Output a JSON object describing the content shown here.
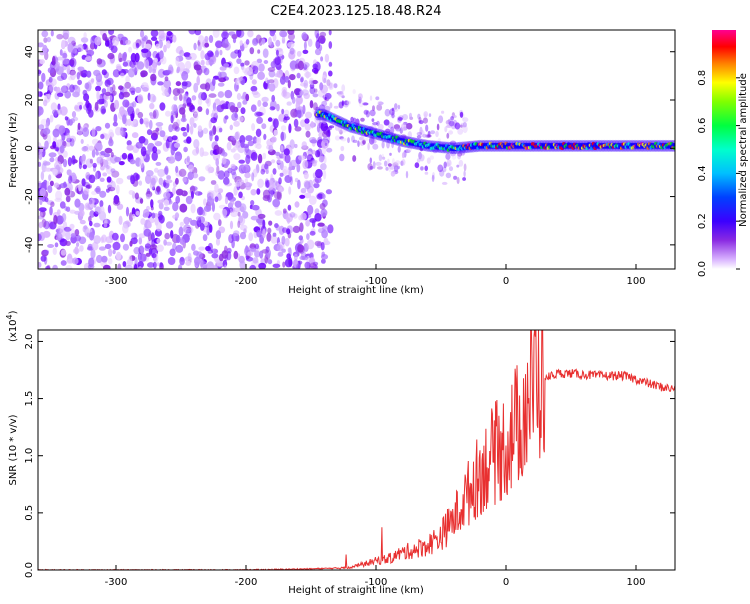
{
  "title": "C2E4.2023.125.18.48.R24",
  "chart_data": [
    {
      "type": "heatmap",
      "xlabel": "Height of straight line (km)",
      "ylabel": "Frequency (Hz)",
      "xlim": [
        -360,
        130
      ],
      "ylim": [
        -50,
        49
      ],
      "xticks": [
        -300,
        -200,
        -100,
        0,
        100
      ],
      "yticks": [
        -40,
        -20,
        0,
        20,
        40
      ],
      "colorbar": {
        "label": "Normalized spectral amplitude",
        "range": [
          0.0,
          1.0
        ],
        "ticks": [
          0.0,
          0.2,
          0.4,
          0.6,
          0.8
        ],
        "colormap": [
          "#ffffff",
          "#d9b3ff",
          "#8a2be2",
          "#3b00ff",
          "#0000ff",
          "#00bfff",
          "#00ffcc",
          "#00ff00",
          "#ffff00",
          "#ff8000",
          "#ff0000",
          "#ff0090"
        ]
      },
      "ridge": {
        "x": [
          -140,
          -120,
          -100,
          -80,
          -60,
          -40,
          -20,
          0,
          20,
          40,
          60,
          80,
          100,
          130
        ],
        "y": [
          14,
          9,
          6,
          3,
          1,
          0,
          1,
          1,
          1,
          1,
          1,
          1,
          1,
          1
        ]
      }
    },
    {
      "type": "line",
      "xlabel": "Height of straight line (km)",
      "ylabel": "SNR (10 * v/v)",
      "y_multiplier": "(x10",
      "y_multiplier_exp": "4",
      "y_multiplier_close": ")",
      "xlim": [
        -360,
        130
      ],
      "ylim": [
        0,
        2.1
      ],
      "xticks": [
        -300,
        -200,
        -100,
        0,
        100
      ],
      "yticks": [
        0.0,
        0.5,
        1.0,
        1.5,
        2.0
      ],
      "color": "#e83030",
      "series": [
        {
          "x": [
            -360,
            -300,
            -200,
            -150,
            -120,
            -110,
            -100,
            -90,
            -80,
            -70,
            -60,
            -50,
            -40,
            -30,
            -20,
            -10,
            0,
            5,
            10,
            15,
            20,
            25,
            30,
            40,
            50,
            60,
            70,
            80,
            90,
            100,
            110,
            120,
            130
          ],
          "y": [
            0.0,
            0.0,
            0.0,
            0.01,
            0.02,
            0.05,
            0.08,
            0.1,
            0.15,
            0.18,
            0.22,
            0.3,
            0.45,
            0.65,
            0.85,
            1.0,
            1.1,
            1.2,
            1.3,
            1.45,
            1.6,
            1.65,
            1.68,
            1.72,
            1.72,
            1.71,
            1.7,
            1.7,
            1.7,
            1.67,
            1.63,
            1.6,
            1.58
          ]
        }
      ]
    }
  ]
}
